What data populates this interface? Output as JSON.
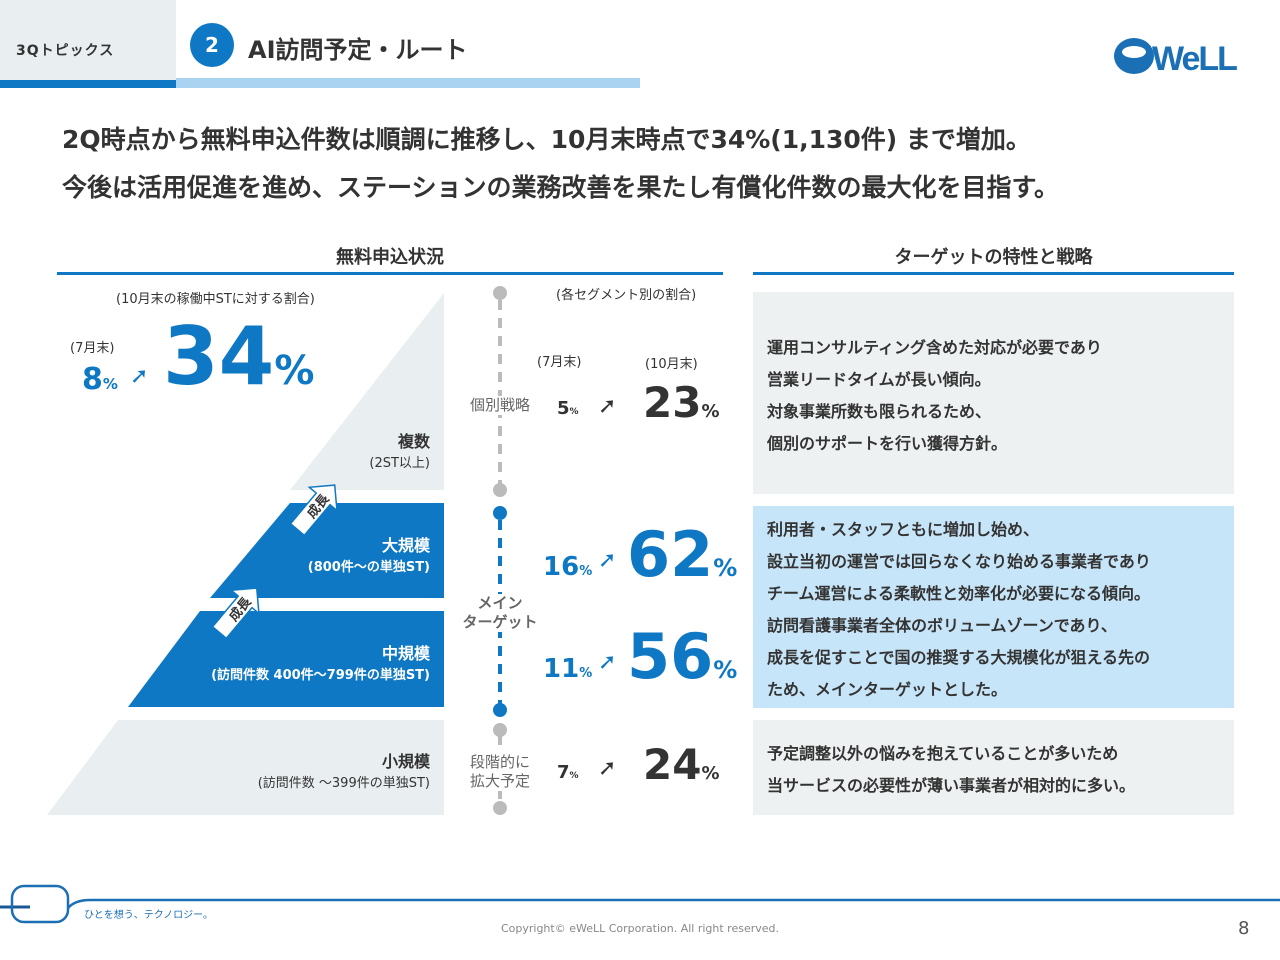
{
  "header": {
    "section": "3Qトピックス",
    "number": "2",
    "title": "AI訪問予定・ルート",
    "logo": "eWeLL"
  },
  "headline": [
    "2Q時点から無料申込件数は順調に推移し、10月末時点で34%(1,130件) まで増加。",
    "今後は活用促進を進め、ステーションの業務改善を果たし有償化件数の最大化を目指す。"
  ],
  "left": {
    "title": "無料申込状況",
    "note": "(10月末の稼働中STに対する割合)",
    "jul_label": "(7月末)",
    "jul_value": "8",
    "oct_value": "34",
    "pct": "%",
    "tiers": [
      {
        "name": "複数",
        "desc": "(2ST以上)"
      },
      {
        "name": "大規模",
        "desc": "(800件～の単独ST)"
      },
      {
        "name": "中規模",
        "desc": "(訪問件数 400件～799件の単独ST)"
      },
      {
        "name": "小規模",
        "desc": "(訪問件数 ～399件の単独ST)"
      }
    ],
    "growth_label": "成長"
  },
  "middle": {
    "note": "(各セグメント別の割合)",
    "jul_label": "(7月末)",
    "oct_label": "(10月末)",
    "strategy_labels": {
      "individual": "個別戦略",
      "main1": "メイン",
      "main2": "ターゲット",
      "gradual1": "段階的に",
      "gradual2": "拡大予定"
    },
    "rows": [
      {
        "jul": "5",
        "oct": "23"
      },
      {
        "jul": "16",
        "oct": "62"
      },
      {
        "jul": "11",
        "oct": "56"
      },
      {
        "jul": "7",
        "oct": "24"
      }
    ]
  },
  "right": {
    "title": "ターゲットの特性と戦略",
    "boxes": [
      {
        "lines": [
          "運用コンサルティング含めた対応が必要であり",
          "営業リードタイムが長い傾向。",
          "対象事業所数も限られるため、",
          "個別のサポートを行い獲得方針。"
        ]
      },
      {
        "lines": [
          "利用者・スタッフともに増加し始め、",
          "設立当初の運営では回らなくなり始める事業者であり",
          "チーム運営による柔軟性と効率化が必要になる傾向。",
          "訪問看護事業者全体のボリュームゾーンであり、",
          "成長を促すことで国の推奨する大規模化が狙える先の",
          "ため、メインターゲットとした。"
        ]
      },
      {
        "lines": [
          "予定調整以外の悩みを抱えていることが多いため",
          "当サービスの必要性が薄い事業者が相対的に多い。"
        ]
      }
    ]
  },
  "footer": {
    "tagline": "ひとを想う、テクノロジー。",
    "copyright": "Copyright© eWeLL Corporation. All right reserved.",
    "page": "8"
  },
  "colors": {
    "brand": "#0e78c4",
    "light_blue": "#c7e5f8",
    "gray": "#e9eef1"
  }
}
